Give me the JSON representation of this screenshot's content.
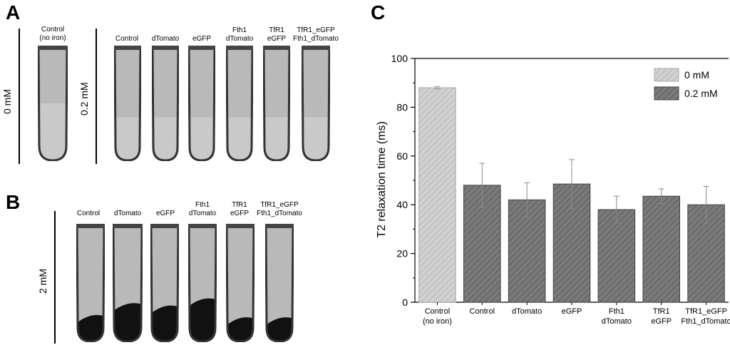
{
  "panels": {
    "a": {
      "letter": "A"
    },
    "b": {
      "letter": "B"
    },
    "c": {
      "letter": "C"
    }
  },
  "panel_a": {
    "left_concentration": "0 mM",
    "right_concentration": "0.2 mM",
    "control_label": "Control\n(no iron)",
    "tube_labels": [
      "Control",
      "dTomato",
      "eGFP",
      "Fth1\ndTomato",
      "TfR1\neGFP",
      "TfR1_eGFP\nFth1_dTomato"
    ]
  },
  "panel_b": {
    "concentration": "2 mM",
    "tube_labels": [
      "Control",
      "dTomato",
      "eGFP",
      "Fth1\ndTomato",
      "TfR1\neGFP",
      "TfR1_eGFP\nFth1_dTomato"
    ],
    "dark_fraction": [
      0.22,
      0.32,
      0.3,
      0.36,
      0.2,
      0.2
    ]
  },
  "colors": {
    "bar_0mM": "#c8c8c8",
    "bar_02mM": "#7a7a7a",
    "tube_light": "#b9b9b9",
    "tube_dark": "#111111",
    "tube_border": "#333333"
  },
  "chart_data": {
    "type": "bar",
    "title": "",
    "xlabel": "",
    "ylabel": "T2 relaxation time (ms)",
    "ylim": [
      0,
      100
    ],
    "yticks": [
      0,
      20,
      40,
      60,
      80,
      100
    ],
    "categories": [
      "Control\n(no iron)",
      "Control",
      "dTomato",
      "eGFP",
      "Fth1\ndTomato",
      "TfR1\neGFP",
      "TfR1_eGFP\nFth1_dTomato"
    ],
    "series": [
      {
        "name": "0 mM",
        "values": [
          88,
          null,
          null,
          null,
          null,
          null,
          null
        ],
        "errors": [
          0.5,
          null,
          null,
          null,
          null,
          null,
          null
        ]
      },
      {
        "name": "0.2 mM",
        "values": [
          null,
          48,
          42,
          48.5,
          38,
          43.5,
          40
        ],
        "errors": [
          null,
          9,
          7,
          10,
          5.5,
          3,
          7.5
        ]
      }
    ],
    "legend_position": "top-right",
    "grid": false
  }
}
